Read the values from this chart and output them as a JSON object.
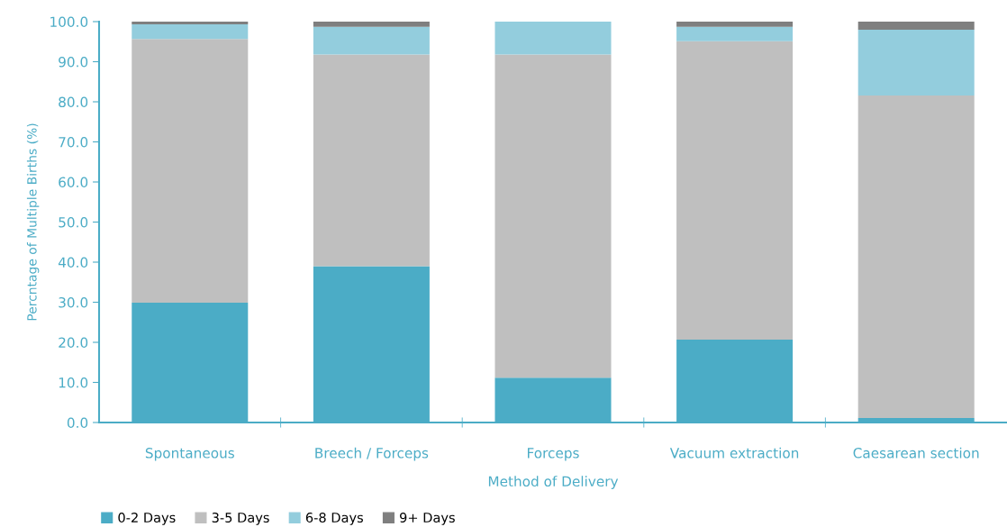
{
  "chart_data": {
    "type": "bar",
    "stacked": true,
    "xlabel": "Method of Delivery",
    "ylabel": "Percntage of Multiple Births (%)",
    "categories": [
      "Spontaneous",
      "Breech / Forceps",
      "Forceps",
      "Vacuum extraction",
      "Caesarean section"
    ],
    "series": [
      {
        "name": "0-2 Days",
        "color": "#4bacc6",
        "values": [
          29.9,
          39.0,
          11.2,
          20.7,
          1.1
        ]
      },
      {
        "name": "3-5 Days",
        "color": "#bfbfbf",
        "values": [
          65.8,
          52.8,
          80.6,
          74.4,
          80.5
        ]
      },
      {
        "name": "6-8 Days",
        "color": "#93cddd",
        "values": [
          3.6,
          6.9,
          8.2,
          3.6,
          16.4
        ]
      },
      {
        "name": "9+ Days",
        "color": "#7f7f7f",
        "values": [
          0.7,
          1.3,
          0,
          1.3,
          2.0
        ]
      }
    ],
    "ylim": [
      0,
      100
    ],
    "yticks": [
      {
        "value": 0,
        "label": "0.0"
      },
      {
        "value": 10,
        "label": "10.0"
      },
      {
        "value": 20,
        "label": "20.0"
      },
      {
        "value": 30,
        "label": "30.0"
      },
      {
        "value": 40,
        "label": "40.0"
      },
      {
        "value": 50,
        "label": "50.0"
      },
      {
        "value": 60,
        "label": "60.0"
      },
      {
        "value": 70,
        "label": "70.0"
      },
      {
        "value": 80,
        "label": "80.0"
      },
      {
        "value": 90,
        "label": "90.0"
      },
      {
        "value": 100,
        "label": "100.0"
      }
    ],
    "grid": false,
    "legend": "bottom left"
  }
}
